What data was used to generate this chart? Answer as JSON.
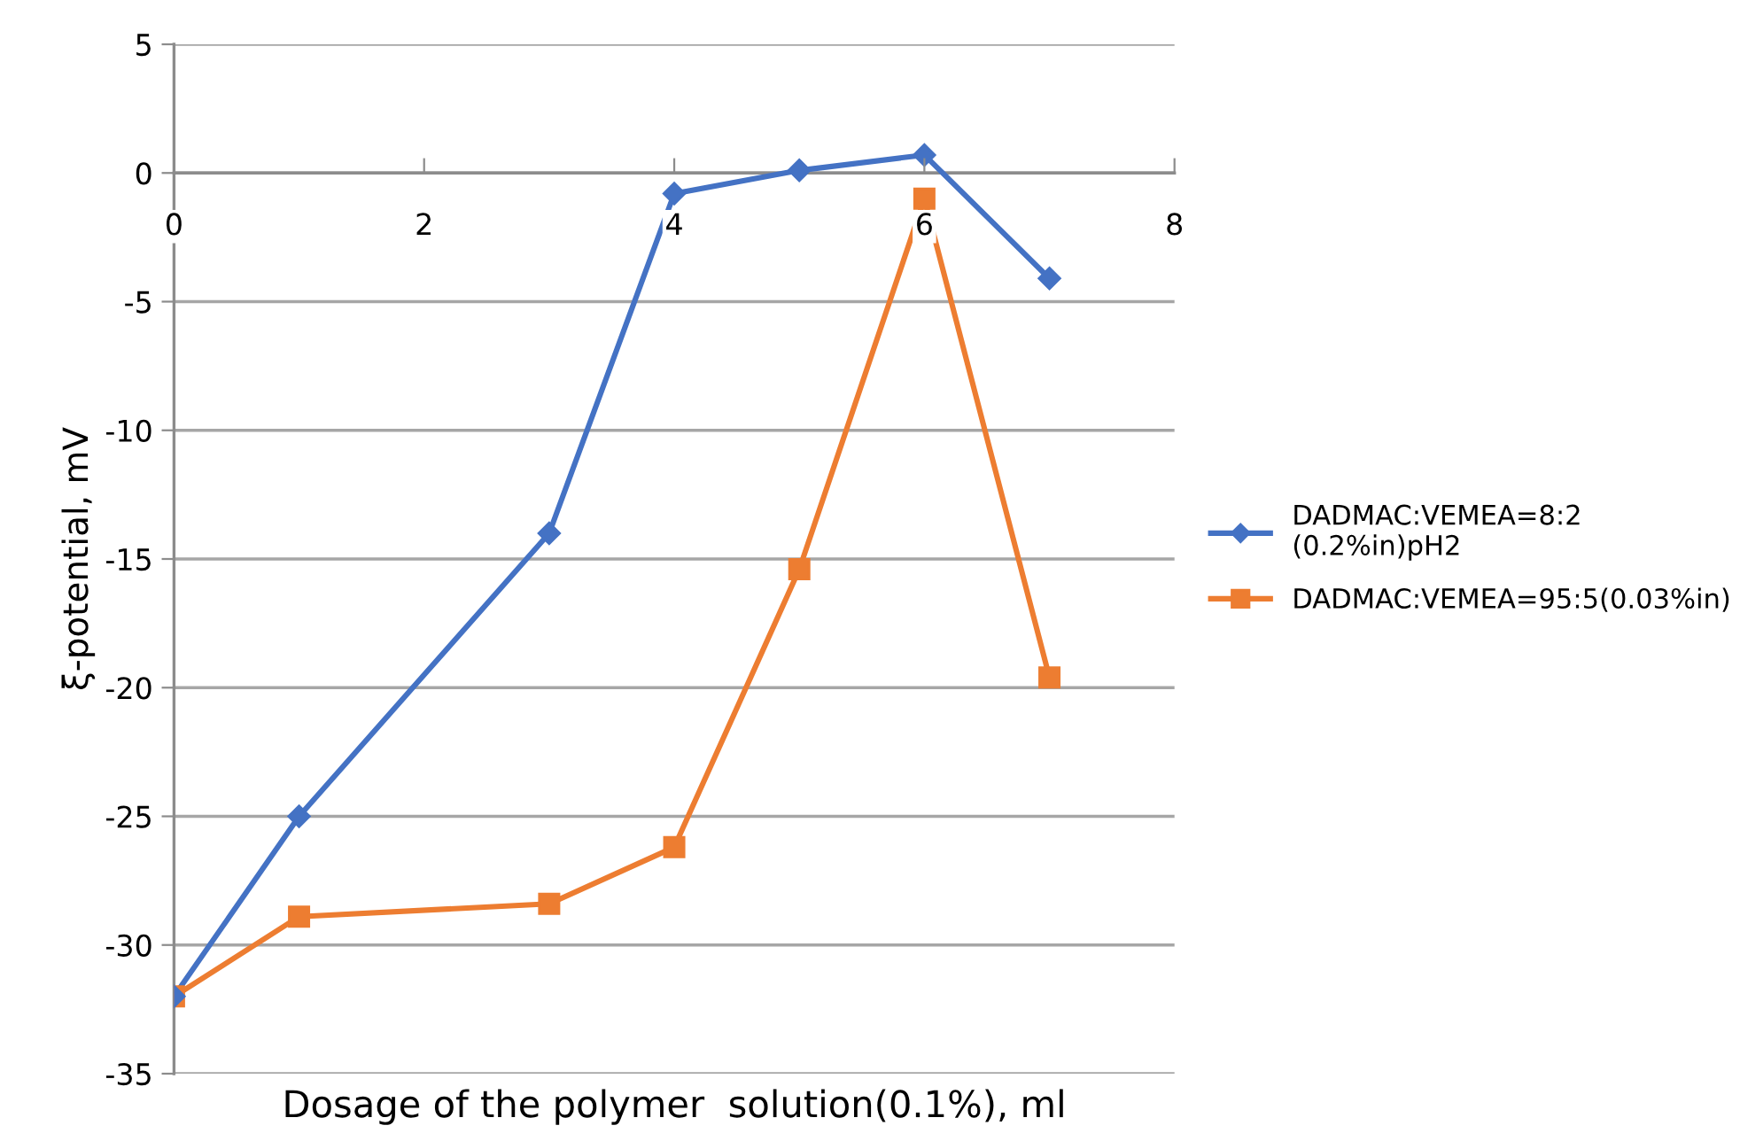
{
  "chart_data": {
    "type": "line",
    "xlabel": "Dosage of the polymer  solution(0.1%), ml",
    "ylabel": "ξ-potential, mV",
    "x": [
      0,
      1,
      3,
      4,
      5,
      6,
      7
    ],
    "series": [
      {
        "name": "DADMAC:VEMEA=8:2 (0.2%in)pH2",
        "color": "#4472c4",
        "marker": "diamond",
        "values": [
          -32,
          -25,
          -14,
          -0.8,
          0.1,
          0.7,
          -4.1
        ]
      },
      {
        "name": "DADMAC:VEMEA=95:5(0.03%in)",
        "color": "#ed7d31",
        "marker": "square",
        "values": [
          -32,
          -28.9,
          -28.4,
          -26.2,
          -15.4,
          -1.0,
          -19.6
        ]
      }
    ],
    "xlim": [
      0,
      8
    ],
    "xticks": [
      0,
      2,
      4,
      6,
      8
    ],
    "ylim": [
      -35,
      5
    ],
    "yticks": [
      -35,
      -30,
      -25,
      -20,
      -15,
      -10,
      -5,
      0,
      5
    ],
    "grid": "y",
    "legend": "right",
    "line_style": "solid"
  }
}
